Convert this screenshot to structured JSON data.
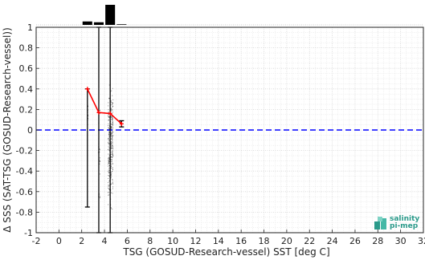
{
  "colors": {
    "mean_line": "#ff0000",
    "zero_line": "#0000ff",
    "scatter": "#555555",
    "error_bar": "#000000",
    "histogram": "#000000",
    "grid": "#d4d4d4",
    "logo": "#2a9a8a"
  },
  "logo": {
    "line1": "salinity",
    "line2": "pi-mep"
  },
  "chart_data": {
    "type": "scatter",
    "xlabel": "TSG (GOSUD-Research-vessel) SST [deg C]",
    "ylabel": "Δ SSS (SAT-TSG (GOSUD-Research-vessel))",
    "xlim": [
      -2,
      32
    ],
    "ylim": [
      -1,
      1
    ],
    "x_ticks": [
      -2,
      0,
      2,
      4,
      6,
      8,
      10,
      12,
      14,
      16,
      18,
      20,
      22,
      24,
      26,
      28,
      30,
      32
    ],
    "y_ticks": [
      -1,
      -0.8,
      -0.6,
      -0.4,
      -0.2,
      0,
      0.2,
      0.4,
      0.6,
      0.8,
      1
    ],
    "x_tick_labels": [
      "-2",
      "0",
      "2",
      "4",
      "6",
      "8",
      "10",
      "12",
      "14",
      "16",
      "18",
      "20",
      "22",
      "24",
      "26",
      "28",
      "30",
      "32"
    ],
    "y_tick_labels": [
      "-1",
      "-0.8",
      "-0.6",
      "-0.4",
      "-0.2",
      "0",
      "0.2",
      "0.4",
      "0.6",
      "0.8",
      "1"
    ],
    "grid": true,
    "reference_line": {
      "y": 0,
      "style": "dashed"
    },
    "mean_series": {
      "x": [
        2.5,
        3.5,
        4.5,
        5.5
      ],
      "y": [
        0.4,
        0.17,
        0.16,
        0.06
      ]
    },
    "error_bars": [
      {
        "x": 2.5,
        "low": -0.75,
        "high": 0.4
      },
      {
        "x": 3.5,
        "low": -1.0,
        "high": 1.0
      },
      {
        "x": 4.5,
        "low": -1.0,
        "high": 1.0
      },
      {
        "x": 5.5,
        "low": 0.03,
        "high": 0.09
      }
    ],
    "histogram": {
      "bins": [
        2.5,
        3.5,
        4.5,
        5.5
      ],
      "relative_heights": [
        0.17,
        0.13,
        1.0,
        0.03
      ]
    },
    "scatter_clusters": [
      {
        "x_center": 2.5,
        "x_spread": 0.05,
        "y_min": -0.1,
        "y_max": 0.35,
        "count": 18
      },
      {
        "x_center": 3.5,
        "x_spread": 0.08,
        "y_min": -0.9,
        "y_max": 0.3,
        "count": 25
      },
      {
        "x_center": 4.5,
        "x_spread": 0.22,
        "y_min": -0.85,
        "y_max": 0.55,
        "count": 360
      },
      {
        "x_center": 5.4,
        "x_spread": 0.05,
        "y_min": 0.04,
        "y_max": 0.1,
        "count": 8
      }
    ]
  }
}
